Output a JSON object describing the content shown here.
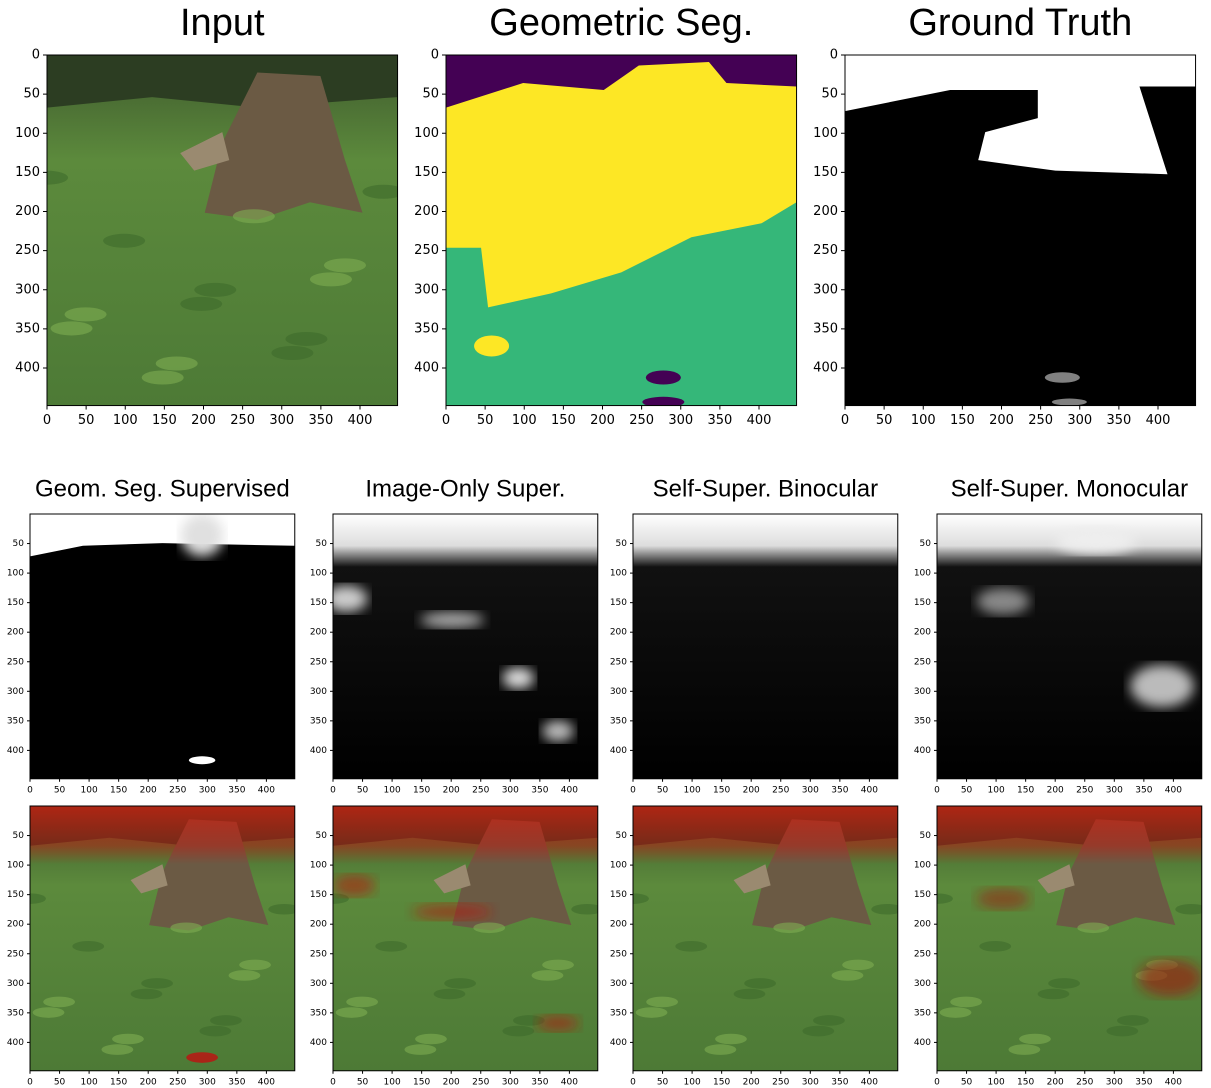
{
  "panels": [
    {
      "title": "Input",
      "xticks": [
        0,
        50,
        100,
        150,
        200,
        250,
        300,
        350,
        400
      ],
      "yticks": [
        0,
        50,
        100,
        150,
        200,
        250,
        300,
        350,
        400
      ]
    },
    {
      "title": "Geometric Seg.",
      "xticks": [
        0,
        50,
        100,
        150,
        200,
        250,
        300,
        350,
        400
      ],
      "yticks": [
        0,
        50,
        100,
        150,
        200,
        250,
        300,
        350,
        400
      ]
    },
    {
      "title": "Ground Truth",
      "xticks": [
        0,
        50,
        100,
        150,
        200,
        250,
        300,
        350,
        400
      ],
      "yticks": [
        0,
        50,
        100,
        150,
        200,
        250,
        300,
        350,
        400
      ]
    },
    {
      "title": "Geom. Seg. Supervised",
      "xticks": [
        0,
        50,
        100,
        150,
        200,
        250,
        300,
        350,
        400
      ],
      "yticks": [
        50,
        100,
        150,
        200,
        250,
        300,
        350,
        400
      ]
    },
    {
      "title": "Image-Only Super.",
      "xticks": [
        0,
        50,
        100,
        150,
        200,
        250,
        300,
        350,
        400
      ],
      "yticks": [
        50,
        100,
        150,
        200,
        250,
        300,
        350,
        400
      ]
    },
    {
      "title": "Self-Super. Binocular",
      "xticks": [
        0,
        50,
        100,
        150,
        200,
        250,
        300,
        350,
        400
      ],
      "yticks": [
        50,
        100,
        150,
        200,
        250,
        300,
        350,
        400
      ]
    },
    {
      "title": "Self-Super. Monocular",
      "xticks": [
        0,
        50,
        100,
        150,
        200,
        250,
        300,
        350,
        400
      ],
      "yticks": [
        50,
        100,
        150,
        200,
        250,
        300,
        350,
        400
      ]
    },
    {
      "xticks": [
        0,
        50,
        100,
        150,
        200,
        250,
        300,
        350,
        400
      ],
      "yticks": [
        50,
        100,
        150,
        200,
        250,
        300,
        350,
        400
      ]
    },
    {
      "xticks": [
        0,
        50,
        100,
        150,
        200,
        250,
        300,
        350,
        400
      ],
      "yticks": [
        50,
        100,
        150,
        200,
        250,
        300,
        350,
        400
      ]
    },
    {
      "xticks": [
        0,
        50,
        100,
        150,
        200,
        250,
        300,
        350,
        400
      ],
      "yticks": [
        50,
        100,
        150,
        200,
        250,
        300,
        350,
        400
      ]
    },
    {
      "xticks": [
        0,
        50,
        100,
        150,
        200,
        250,
        300,
        350,
        400
      ],
      "yticks": [
        50,
        100,
        150,
        200,
        250,
        300,
        350,
        400
      ]
    }
  ]
}
